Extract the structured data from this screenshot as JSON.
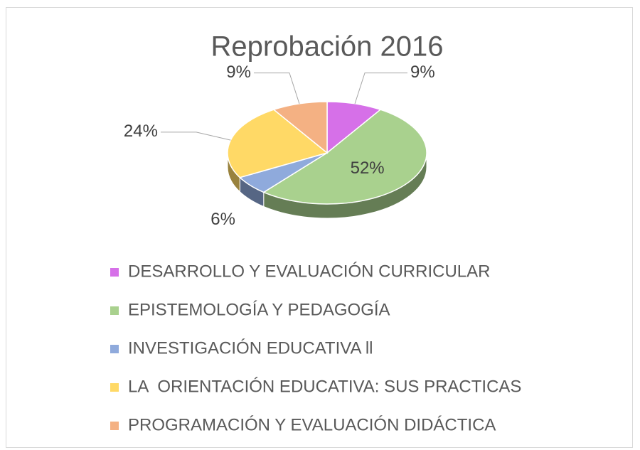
{
  "chart_data": {
    "type": "pie3d",
    "title": "Reprobación 2016",
    "categories": [
      "DESARROLLO Y EVALUACIÓN CURRICULAR",
      "EPISTEMOLOGÍA Y PEDAGOGÍA",
      "INVESTIGACIÓN EDUCATIVA ll",
      "LA  ORIENTACIÓN EDUCATIVA: SUS PRACTICAS",
      "PROGRAMACIÓN Y EVALUACIÓN DIDÁCTICA"
    ],
    "values": [
      9,
      52,
      6,
      24,
      9
    ],
    "value_labels": [
      "9%",
      "52%",
      "6%",
      "24%",
      "9%"
    ],
    "colors": [
      "#d670e8",
      "#a9d18e",
      "#8faadc",
      "#ffd966",
      "#f4b183"
    ],
    "legend": "bottom"
  }
}
